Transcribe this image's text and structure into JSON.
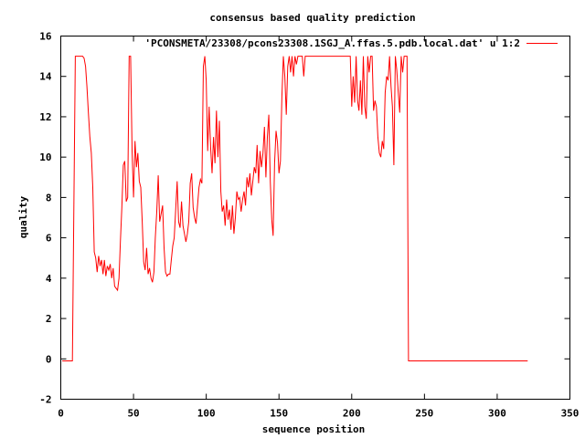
{
  "chart_data": {
    "type": "line",
    "title": "consensus based quality prediction",
    "xlabel": "sequence position",
    "ylabel": "quality",
    "xlim": [
      0,
      350
    ],
    "ylim": [
      -2,
      16
    ],
    "x_ticks": [
      "0",
      "50",
      "100",
      "150",
      "200",
      "250",
      "300",
      "350"
    ],
    "y_ticks": [
      "-2",
      "0",
      "2",
      "4",
      "6",
      "8",
      "10",
      "12",
      "14",
      "16"
    ],
    "grid": false,
    "legend_position": "top-right",
    "series": [
      {
        "name": "'PCONSMETA/23308/pcons23308.1SGJ_A.ffas.5.pdb.local.dat' u 1:2",
        "color": "#ff0000",
        "points": [
          [
            1,
            -0.1
          ],
          [
            8,
            -0.1
          ],
          [
            9,
            7.5
          ],
          [
            10,
            15
          ],
          [
            15,
            15
          ],
          [
            16,
            14.9
          ],
          [
            17,
            14.5
          ],
          [
            18,
            13.5
          ],
          [
            19,
            12.2
          ],
          [
            20,
            11.0
          ],
          [
            21,
            10.2
          ],
          [
            22,
            8.5
          ],
          [
            23,
            5.3
          ],
          [
            24,
            5.0
          ],
          [
            25,
            4.3
          ],
          [
            26,
            5.1
          ],
          [
            27,
            4.6
          ],
          [
            28,
            4.9
          ],
          [
            29,
            4.2
          ],
          [
            30,
            4.9
          ],
          [
            31,
            4.1
          ],
          [
            32,
            4.6
          ],
          [
            33,
            4.4
          ],
          [
            34,
            4.7
          ],
          [
            35,
            4.0
          ],
          [
            36,
            4.5
          ],
          [
            37,
            3.6
          ],
          [
            38,
            3.5
          ],
          [
            39,
            3.4
          ],
          [
            40,
            4.0
          ],
          [
            41,
            5.8
          ],
          [
            42,
            7.5
          ],
          [
            43,
            9.6
          ],
          [
            44,
            9.8
          ],
          [
            45,
            7.8
          ],
          [
            46,
            8.0
          ],
          [
            47,
            15
          ],
          [
            48,
            15
          ],
          [
            49,
            10.3
          ],
          [
            50,
            8.0
          ],
          [
            51,
            10.8
          ],
          [
            52,
            9.5
          ],
          [
            53,
            10.2
          ],
          [
            54,
            8.8
          ],
          [
            55,
            8.5
          ],
          [
            56,
            6.8
          ],
          [
            57,
            4.8
          ],
          [
            58,
            4.4
          ],
          [
            59,
            5.5
          ],
          [
            60,
            4.2
          ],
          [
            61,
            4.5
          ],
          [
            62,
            4.0
          ],
          [
            63,
            3.8
          ],
          [
            64,
            4.3
          ],
          [
            65,
            6.0
          ],
          [
            66,
            7.3
          ],
          [
            67,
            9.1
          ],
          [
            68,
            6.8
          ],
          [
            69,
            7.2
          ],
          [
            70,
            7.6
          ],
          [
            71,
            5.5
          ],
          [
            72,
            4.3
          ],
          [
            73,
            4.1
          ],
          [
            74,
            4.2
          ],
          [
            75,
            4.2
          ],
          [
            76,
            4.9
          ],
          [
            77,
            5.6
          ],
          [
            78,
            6.0
          ],
          [
            79,
            7.4
          ],
          [
            80,
            8.8
          ],
          [
            81,
            6.8
          ],
          [
            82,
            6.5
          ],
          [
            83,
            7.8
          ],
          [
            84,
            6.6
          ],
          [
            85,
            6.2
          ],
          [
            86,
            5.8
          ],
          [
            87,
            6.2
          ],
          [
            88,
            6.8
          ],
          [
            89,
            8.7
          ],
          [
            90,
            9.2
          ],
          [
            91,
            7.5
          ],
          [
            92,
            7.0
          ],
          [
            93,
            6.7
          ],
          [
            94,
            7.6
          ],
          [
            95,
            8.5
          ],
          [
            96,
            8.9
          ],
          [
            97,
            8.7
          ],
          [
            98,
            14.5
          ],
          [
            99,
            15
          ],
          [
            100,
            13.8
          ],
          [
            101,
            10.3
          ],
          [
            102,
            12.5
          ],
          [
            103,
            10.5
          ],
          [
            104,
            9.2
          ],
          [
            105,
            11.0
          ],
          [
            106,
            9.7
          ],
          [
            107,
            12.3
          ],
          [
            108,
            10.0
          ],
          [
            109,
            11.8
          ],
          [
            110,
            8.3
          ],
          [
            111,
            7.3
          ],
          [
            112,
            7.6
          ],
          [
            113,
            6.6
          ],
          [
            114,
            7.9
          ],
          [
            115,
            6.9
          ],
          [
            116,
            7.4
          ],
          [
            117,
            6.4
          ],
          [
            118,
            7.6
          ],
          [
            119,
            6.2
          ],
          [
            120,
            7.0
          ],
          [
            121,
            8.3
          ],
          [
            122,
            7.9
          ],
          [
            123,
            8.0
          ],
          [
            124,
            7.3
          ],
          [
            125,
            7.9
          ],
          [
            126,
            8.3
          ],
          [
            127,
            7.6
          ],
          [
            128,
            9.0
          ],
          [
            129,
            8.5
          ],
          [
            130,
            9.2
          ],
          [
            131,
            8.1
          ],
          [
            132,
            8.8
          ],
          [
            133,
            9.5
          ],
          [
            134,
            9.2
          ],
          [
            135,
            10.6
          ],
          [
            136,
            8.7
          ],
          [
            137,
            10.3
          ],
          [
            138,
            9.5
          ],
          [
            139,
            10.2
          ],
          [
            140,
            11.5
          ],
          [
            141,
            9.0
          ],
          [
            142,
            11.0
          ],
          [
            143,
            12.1
          ],
          [
            144,
            8.8
          ],
          [
            145,
            6.9
          ],
          [
            146,
            6.1
          ],
          [
            147,
            9.7
          ],
          [
            148,
            11.3
          ],
          [
            149,
            10.7
          ],
          [
            150,
            9.2
          ],
          [
            151,
            9.8
          ],
          [
            152,
            13.0
          ],
          [
            153,
            15
          ],
          [
            154,
            14.0
          ],
          [
            155,
            12.1
          ],
          [
            156,
            14.5
          ],
          [
            157,
            15
          ],
          [
            158,
            14.2
          ],
          [
            159,
            15
          ],
          [
            160,
            14.0
          ],
          [
            161,
            15
          ],
          [
            162,
            14.6
          ],
          [
            163,
            15
          ],
          [
            164,
            15
          ],
          [
            165,
            15
          ],
          [
            166,
            15
          ],
          [
            167,
            14.0
          ],
          [
            168,
            15
          ],
          [
            169,
            15
          ],
          [
            170,
            15
          ],
          [
            175,
            15
          ],
          [
            180,
            15
          ],
          [
            185,
            15
          ],
          [
            190,
            15
          ],
          [
            195,
            15
          ],
          [
            198,
            15
          ],
          [
            199,
            15
          ],
          [
            200,
            12.5
          ],
          [
            201,
            14.0
          ],
          [
            202,
            12.7
          ],
          [
            203,
            15
          ],
          [
            204,
            12.8
          ],
          [
            205,
            12.3
          ],
          [
            206,
            13.8
          ],
          [
            207,
            12.1
          ],
          [
            208,
            15
          ],
          [
            209,
            12.5
          ],
          [
            210,
            11.9
          ],
          [
            211,
            15
          ],
          [
            212,
            14.2
          ],
          [
            213,
            15
          ],
          [
            214,
            15
          ],
          [
            215,
            12.3
          ],
          [
            216,
            12.8
          ],
          [
            217,
            12.5
          ],
          [
            218,
            11.0
          ],
          [
            219,
            10.2
          ],
          [
            220,
            10.0
          ],
          [
            221,
            10.8
          ],
          [
            222,
            10.4
          ],
          [
            223,
            13.2
          ],
          [
            224,
            14.0
          ],
          [
            225,
            13.8
          ],
          [
            226,
            15
          ],
          [
            227,
            13.5
          ],
          [
            228,
            12.5
          ],
          [
            229,
            9.6
          ],
          [
            230,
            15
          ],
          [
            231,
            14.3
          ],
          [
            232,
            13.2
          ],
          [
            233,
            12.2
          ],
          [
            234,
            15
          ],
          [
            235,
            14.2
          ],
          [
            236,
            15
          ],
          [
            237,
            15
          ],
          [
            238,
            15
          ],
          [
            239,
            -0.1
          ],
          [
            321,
            -0.1
          ]
        ]
      }
    ]
  }
}
